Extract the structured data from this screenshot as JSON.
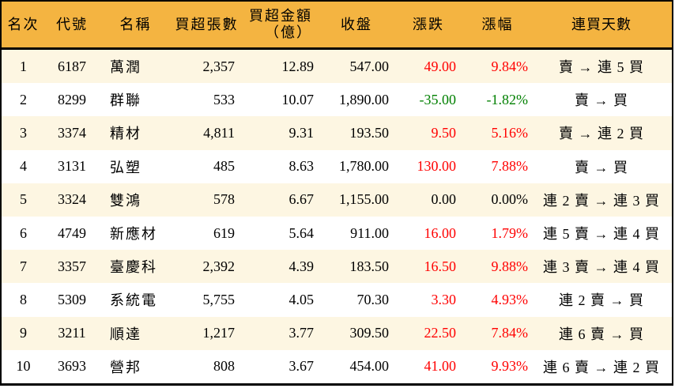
{
  "colors": {
    "header_bg": "#f4b441",
    "row_alt_bg": "#fdf6e2",
    "row_bg": "#ffffff",
    "border": "#000000",
    "up_red": "#ff0000",
    "down_green": "#008000",
    "flat_black": "#000000"
  },
  "headers_display": [
    "名次",
    "代號",
    "名稱",
    "買超張數",
    "買超金額\n（億）",
    "收盤",
    "漲跌",
    "漲幅",
    "連買天數"
  ],
  "chart_data": {
    "type": "table",
    "title": "",
    "columns": [
      "名次",
      "代號",
      "名稱",
      "買超張數",
      "買超金額（億）",
      "收盤",
      "漲跌",
      "漲幅",
      "連買天數"
    ],
    "rows": [
      {
        "rank": "1",
        "code": "6187",
        "name": "萬潤",
        "net_buy_volume": "2,357",
        "net_buy_amount": "12.89",
        "close": "547.00",
        "change": "49.00",
        "change_pct": "9.84%",
        "streak": "賣 → 連 5 買",
        "change_color": "red"
      },
      {
        "rank": "2",
        "code": "8299",
        "name": "群聯",
        "net_buy_volume": "533",
        "net_buy_amount": "10.07",
        "close": "1,890.00",
        "change": "-35.00",
        "change_pct": "-1.82%",
        "streak": "賣 → 買",
        "change_color": "green"
      },
      {
        "rank": "3",
        "code": "3374",
        "name": "精材",
        "net_buy_volume": "4,811",
        "net_buy_amount": "9.31",
        "close": "193.50",
        "change": "9.50",
        "change_pct": "5.16%",
        "streak": "賣 → 連 2 買",
        "change_color": "red"
      },
      {
        "rank": "4",
        "code": "3131",
        "name": "弘塑",
        "net_buy_volume": "485",
        "net_buy_amount": "8.63",
        "close": "1,780.00",
        "change": "130.00",
        "change_pct": "7.88%",
        "streak": "賣 → 買",
        "change_color": "red"
      },
      {
        "rank": "5",
        "code": "3324",
        "name": "雙鴻",
        "net_buy_volume": "578",
        "net_buy_amount": "6.67",
        "close": "1,155.00",
        "change": "0.00",
        "change_pct": "0.00%",
        "streak": "連 2 賣 → 連 3 買",
        "change_color": "black"
      },
      {
        "rank": "6",
        "code": "4749",
        "name": "新應材",
        "net_buy_volume": "619",
        "net_buy_amount": "5.64",
        "close": "911.00",
        "change": "16.00",
        "change_pct": "1.79%",
        "streak": "連 5 賣 → 連 4 買",
        "change_color": "red"
      },
      {
        "rank": "7",
        "code": "3357",
        "name": "臺慶科",
        "net_buy_volume": "2,392",
        "net_buy_amount": "4.39",
        "close": "183.50",
        "change": "16.50",
        "change_pct": "9.88%",
        "streak": "連 3 賣 → 連 4 買",
        "change_color": "red"
      },
      {
        "rank": "8",
        "code": "5309",
        "name": "系統電",
        "net_buy_volume": "5,755",
        "net_buy_amount": "4.05",
        "close": "70.30",
        "change": "3.30",
        "change_pct": "4.93%",
        "streak": "連 2 賣 → 買",
        "change_color": "red"
      },
      {
        "rank": "9",
        "code": "3211",
        "name": "順達",
        "net_buy_volume": "1,217",
        "net_buy_amount": "3.77",
        "close": "309.50",
        "change": "22.50",
        "change_pct": "7.84%",
        "streak": "連 6 賣 → 買",
        "change_color": "red"
      },
      {
        "rank": "10",
        "code": "3693",
        "name": "營邦",
        "net_buy_volume": "808",
        "net_buy_amount": "3.67",
        "close": "454.00",
        "change": "41.00",
        "change_pct": "9.93%",
        "streak": "連 6 賣 → 連 2 買",
        "change_color": "red"
      }
    ]
  }
}
